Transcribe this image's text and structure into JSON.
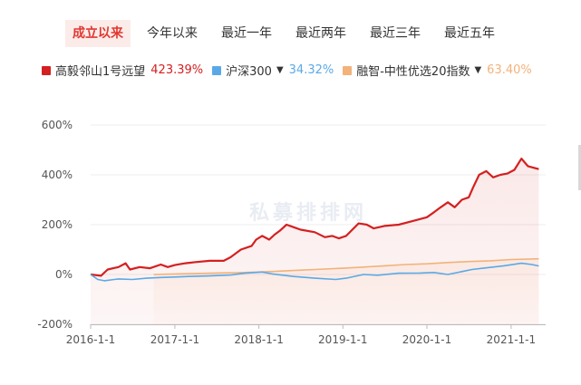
{
  "tabs": [
    "成立以来",
    "今年以来",
    "最近一年",
    "最近两年",
    "最近三年",
    "最近五年"
  ],
  "active_tab": 0,
  "legend": [
    {
      "name": "高毅邻山1号远望",
      "value": "423.39%",
      "color": "#d42020",
      "dropdown": false
    },
    {
      "name": "沪深300",
      "value": "34.32%",
      "color": "#5aa9e6",
      "dropdown": true
    },
    {
      "name": "融智-中性优选20指数",
      "value": "63.40%",
      "color": "#f2b27a",
      "dropdown": true
    }
  ],
  "watermark": "私募排排网",
  "chart_data": {
    "type": "line",
    "y_ticks": [
      "600%",
      "400%",
      "200%",
      "0%",
      "-200%"
    ],
    "x_ticks": [
      "2016-1-1",
      "2017-1-1",
      "2018-1-1",
      "2019-1-1",
      "2020-1-1",
      "2021-1-1"
    ],
    "ylim": [
      -200,
      600
    ],
    "xlim": [
      "2016-01-01",
      "2021-05-31"
    ],
    "series": [
      {
        "name": "高毅邻山1号远望",
        "color": "#d42020",
        "area": true,
        "points": [
          [
            "2016-01-01",
            0
          ],
          [
            "2016-02-15",
            -5
          ],
          [
            "2016-03-15",
            20
          ],
          [
            "2016-05-01",
            30
          ],
          [
            "2016-06-01",
            45
          ],
          [
            "2016-06-20",
            20
          ],
          [
            "2016-08-01",
            30
          ],
          [
            "2016-09-15",
            25
          ],
          [
            "2016-11-01",
            40
          ],
          [
            "2016-12-01",
            30
          ],
          [
            "2017-01-01",
            38
          ],
          [
            "2017-02-15",
            45
          ],
          [
            "2017-04-01",
            50
          ],
          [
            "2017-06-01",
            55
          ],
          [
            "2017-08-01",
            55
          ],
          [
            "2017-09-01",
            70
          ],
          [
            "2017-10-15",
            100
          ],
          [
            "2017-12-01",
            115
          ],
          [
            "2017-12-20",
            140
          ],
          [
            "2018-01-15",
            155
          ],
          [
            "2018-02-15",
            140
          ],
          [
            "2018-03-10",
            160
          ],
          [
            "2018-04-01",
            175
          ],
          [
            "2018-05-01",
            200
          ],
          [
            "2018-06-01",
            190
          ],
          [
            "2018-07-01",
            180
          ],
          [
            "2018-09-01",
            170
          ],
          [
            "2018-10-15",
            150
          ],
          [
            "2018-11-15",
            155
          ],
          [
            "2018-12-15",
            145
          ],
          [
            "2019-01-15",
            155
          ],
          [
            "2019-03-10",
            205
          ],
          [
            "2019-04-15",
            200
          ],
          [
            "2019-05-15",
            185
          ],
          [
            "2019-07-01",
            195
          ],
          [
            "2019-09-01",
            200
          ],
          [
            "2019-11-01",
            215
          ],
          [
            "2020-01-01",
            230
          ],
          [
            "2020-02-01",
            250
          ],
          [
            "2020-03-01",
            270
          ],
          [
            "2020-04-01",
            290
          ],
          [
            "2020-05-01",
            270
          ],
          [
            "2020-06-01",
            300
          ],
          [
            "2020-07-01",
            310
          ],
          [
            "2020-07-20",
            350
          ],
          [
            "2020-08-15",
            400
          ],
          [
            "2020-09-15",
            415
          ],
          [
            "2020-10-15",
            390
          ],
          [
            "2020-11-15",
            400
          ],
          [
            "2020-12-15",
            405
          ],
          [
            "2021-01-15",
            420
          ],
          [
            "2021-02-15",
            465
          ],
          [
            "2021-03-15",
            435
          ],
          [
            "2021-05-01",
            423
          ]
        ]
      },
      {
        "name": "沪深300",
        "color": "#5aa9e6",
        "area": false,
        "points": [
          [
            "2016-01-01",
            0
          ],
          [
            "2016-02-01",
            -20
          ],
          [
            "2016-03-01",
            -25
          ],
          [
            "2016-05-01",
            -18
          ],
          [
            "2016-07-01",
            -20
          ],
          [
            "2016-09-01",
            -15
          ],
          [
            "2016-11-01",
            -12
          ],
          [
            "2017-01-01",
            -10
          ],
          [
            "2017-03-01",
            -8
          ],
          [
            "2017-06-01",
            -6
          ],
          [
            "2017-09-01",
            -2
          ],
          [
            "2017-11-01",
            5
          ],
          [
            "2018-01-15",
            10
          ],
          [
            "2018-03-01",
            2
          ],
          [
            "2018-06-01",
            -8
          ],
          [
            "2018-09-01",
            -15
          ],
          [
            "2018-12-01",
            -20
          ],
          [
            "2019-01-15",
            -15
          ],
          [
            "2019-04-01",
            0
          ],
          [
            "2019-06-01",
            -3
          ],
          [
            "2019-09-01",
            5
          ],
          [
            "2019-12-01",
            6
          ],
          [
            "2020-02-01",
            8
          ],
          [
            "2020-04-01",
            0
          ],
          [
            "2020-07-15",
            20
          ],
          [
            "2020-09-01",
            25
          ],
          [
            "2020-12-01",
            35
          ],
          [
            "2021-02-15",
            45
          ],
          [
            "2021-04-01",
            40
          ],
          [
            "2021-05-01",
            34
          ]
        ]
      },
      {
        "name": "融智-中性优选20指数",
        "color": "#f2b27a",
        "area": true,
        "points": [
          [
            "2016-10-01",
            0
          ],
          [
            "2017-01-01",
            2
          ],
          [
            "2017-06-01",
            5
          ],
          [
            "2017-11-01",
            8
          ],
          [
            "2018-03-01",
            12
          ],
          [
            "2018-06-01",
            16
          ],
          [
            "2018-09-01",
            20
          ],
          [
            "2019-01-01",
            25
          ],
          [
            "2019-04-01",
            30
          ],
          [
            "2019-07-01",
            35
          ],
          [
            "2019-10-01",
            40
          ],
          [
            "2020-01-01",
            43
          ],
          [
            "2020-04-01",
            48
          ],
          [
            "2020-07-01",
            52
          ],
          [
            "2020-10-01",
            55
          ],
          [
            "2021-01-01",
            60
          ],
          [
            "2021-05-01",
            63
          ]
        ]
      }
    ]
  }
}
